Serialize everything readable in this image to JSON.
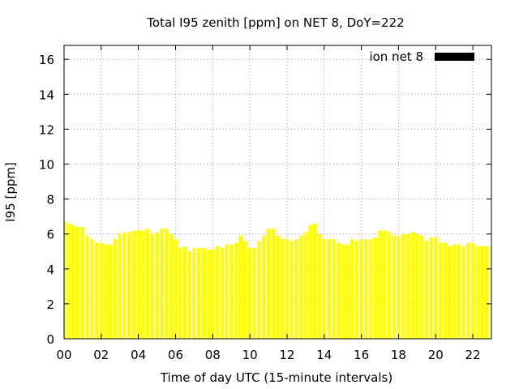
{
  "chart_data": {
    "type": "bar",
    "title": "Total I95 zenith [ppm] on NET 8, DoY=222",
    "xlabel": "Time of day UTC (15-minute intervals)",
    "ylabel": "I95 [ppm]",
    "xlim": [
      0,
      23
    ],
    "ylim": [
      0,
      16.8
    ],
    "x_ticks": [
      0,
      2,
      4,
      6,
      8,
      10,
      12,
      14,
      16,
      18,
      20,
      22
    ],
    "x_tick_labels": [
      "00",
      "02",
      "04",
      "06",
      "08",
      "10",
      "12",
      "14",
      "16",
      "18",
      "20",
      "22"
    ],
    "y_ticks": [
      0,
      2,
      4,
      6,
      8,
      10,
      12,
      14,
      16
    ],
    "y_tick_labels": [
      "0",
      "2",
      "4",
      "6",
      "8",
      "10",
      "12",
      "14",
      "16"
    ],
    "grid": true,
    "legend": {
      "placement": "top-right",
      "color": "#000000"
    },
    "bar_color": "#ffff00",
    "bar_width_hours": 0.2,
    "series": [
      {
        "name": "ion net 8",
        "x": [
          0,
          0.25,
          0.5,
          0.75,
          1,
          1.25,
          1.5,
          1.75,
          2,
          2.25,
          2.5,
          2.75,
          3,
          3.25,
          3.5,
          3.75,
          4,
          4.25,
          4.5,
          4.75,
          5,
          5.25,
          5.5,
          5.75,
          6,
          6.25,
          6.5,
          6.75,
          7,
          7.25,
          7.5,
          7.75,
          8,
          8.25,
          8.5,
          8.75,
          9,
          9.25,
          9.5,
          9.75,
          10,
          10.25,
          10.5,
          10.75,
          11,
          11.25,
          11.5,
          11.75,
          12,
          12.25,
          12.5,
          12.75,
          13,
          13.25,
          13.5,
          13.75,
          14,
          14.25,
          14.5,
          14.75,
          15,
          15.25,
          15.5,
          15.75,
          16,
          16.25,
          16.5,
          16.75,
          17,
          17.25,
          17.5,
          17.75,
          18,
          18.25,
          18.5,
          18.75,
          19,
          19.25,
          19.5,
          19.75,
          20,
          20.25,
          20.5,
          20.75,
          21,
          21.25,
          21.5,
          21.75,
          22,
          22.25,
          22.5,
          22.75
        ],
        "values": [
          6.7,
          6.6,
          6.5,
          6.4,
          6.4,
          5.9,
          5.7,
          5.5,
          5.5,
          5.4,
          5.4,
          5.7,
          6.0,
          6.1,
          6.1,
          6.2,
          6.2,
          6.2,
          6.3,
          6.0,
          6.1,
          6.3,
          6.3,
          6.0,
          5.7,
          5.2,
          5.3,
          5.0,
          5.2,
          5.2,
          5.2,
          5.1,
          5.1,
          5.3,
          5.2,
          5.4,
          5.4,
          5.5,
          5.9,
          5.6,
          5.2,
          5.2,
          5.6,
          5.9,
          6.3,
          6.3,
          5.9,
          5.7,
          5.7,
          5.6,
          5.7,
          5.9,
          6.1,
          6.5,
          6.6,
          6.0,
          5.7,
          5.7,
          5.7,
          5.5,
          5.4,
          5.4,
          5.7,
          5.6,
          5.7,
          5.7,
          5.7,
          5.8,
          6.2,
          6.2,
          6.1,
          5.9,
          5.9,
          6.0,
          6.0,
          6.1,
          6.0,
          5.9,
          5.6,
          5.8,
          5.8,
          5.5,
          5.5,
          5.3,
          5.4,
          5.4,
          5.3,
          5.5,
          5.5,
          5.3,
          5.3,
          5.3
        ]
      }
    ]
  }
}
